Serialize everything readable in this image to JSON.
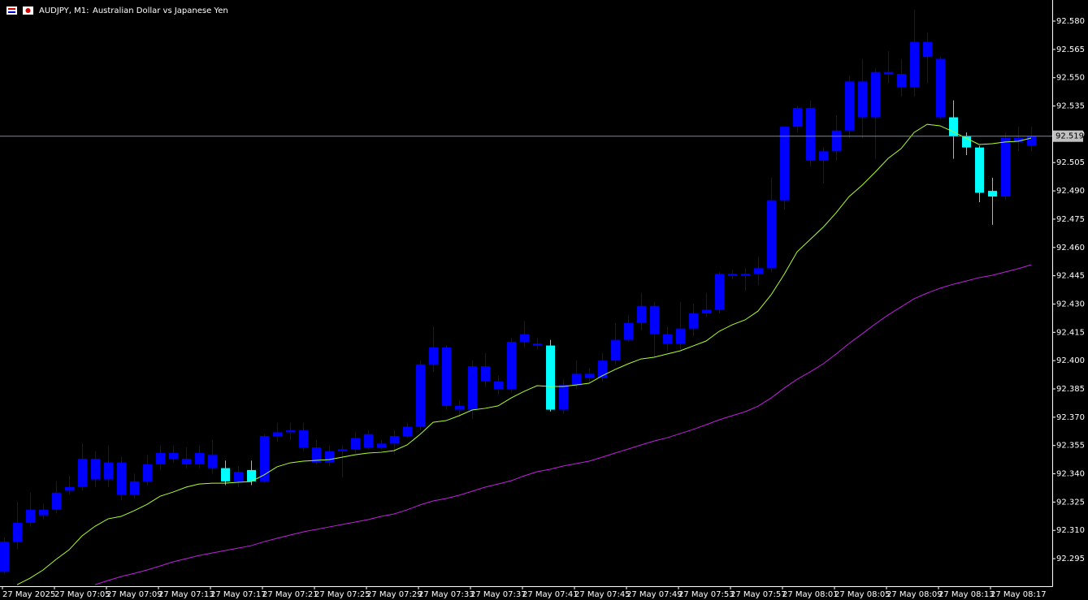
{
  "chart_data": {
    "type": "candlestick",
    "symbol": "AUDJPY, M1:",
    "description": "Australian Dollar vs Japanese Yen",
    "categories": [
      "27 May 2025",
      null,
      null,
      null,
      "27 May 07:05",
      null,
      null,
      null,
      "27 May 07:09",
      null,
      null,
      null,
      "27 May 07:13",
      null,
      null,
      null,
      "27 May 07:17",
      null,
      null,
      null,
      "27 May 07:21",
      null,
      null,
      null,
      "27 May 07:25",
      null,
      null,
      null,
      "27 May 07:29",
      null,
      null,
      null,
      "27 May 07:33",
      null,
      null,
      null,
      "27 May 07:37",
      null,
      null,
      null,
      "27 May 07:41",
      null,
      null,
      null,
      "27 May 07:45",
      null,
      null,
      null,
      "27 May 07:49",
      null,
      null,
      null,
      "27 May 07:53",
      null,
      null,
      null,
      "27 May 07:57",
      null,
      null,
      null,
      "27 May 08:01",
      null,
      null,
      null,
      "27 May 08:05",
      null,
      null,
      null,
      "27 May 08:09",
      null,
      null,
      null,
      "27 May 08:13",
      null,
      null,
      null,
      "27 May 08:17",
      null,
      null,
      null
    ],
    "open": [
      92.288,
      92.304,
      92.314,
      92.318,
      92.321,
      92.331,
      92.333,
      92.348,
      92.337,
      92.346,
      92.329,
      92.336,
      92.345,
      92.351,
      92.348,
      92.345,
      92.35,
      92.343,
      92.336,
      92.342,
      92.336,
      92.36,
      92.362,
      92.363,
      92.354,
      92.346,
      92.352,
      92.353,
      92.354,
      92.354,
      92.356,
      92.36,
      92.365,
      92.398,
      92.407,
      92.376,
      92.374,
      92.397,
      92.389,
      92.385,
      92.41,
      92.409,
      92.408,
      92.374,
      92.387,
      92.393,
      92.391,
      92.4,
      92.411,
      92.42,
      92.429,
      92.414,
      92.409,
      92.417,
      92.425,
      92.427,
      92.446,
      92.445,
      92.446,
      92.449,
      92.485,
      92.524,
      92.534,
      92.506,
      92.511,
      92.522,
      92.548,
      92.529,
      92.553,
      92.552,
      92.545,
      92.569,
      92.56,
      92.529,
      92.519,
      92.513,
      92.49,
      92.487,
      92.516,
      92.514
    ],
    "high": [
      92.306,
      92.325,
      92.33,
      92.324,
      92.336,
      92.339,
      92.356,
      92.352,
      92.355,
      92.349,
      92.34,
      92.35,
      92.355,
      92.355,
      92.354,
      92.355,
      92.358,
      92.347,
      92.344,
      92.347,
      92.361,
      92.367,
      92.367,
      92.367,
      92.358,
      92.355,
      92.355,
      92.362,
      92.363,
      92.358,
      92.363,
      92.367,
      92.4,
      92.418,
      92.408,
      92.379,
      92.4,
      92.404,
      92.392,
      92.412,
      92.421,
      92.412,
      92.411,
      92.39,
      92.4,
      92.396,
      92.404,
      92.42,
      92.424,
      92.436,
      92.431,
      92.418,
      92.431,
      92.43,
      92.436,
      92.447,
      92.448,
      92.449,
      92.455,
      92.497,
      92.524,
      92.535,
      92.538,
      92.513,
      92.53,
      92.551,
      92.56,
      92.555,
      92.564,
      92.56,
      92.586,
      92.574,
      92.561,
      92.538,
      92.521,
      92.514,
      92.497,
      92.521,
      92.524,
      92.524
    ],
    "low": [
      92.287,
      92.3,
      92.312,
      92.316,
      92.319,
      92.329,
      92.331,
      92.333,
      92.333,
      92.326,
      92.327,
      92.334,
      92.342,
      92.346,
      92.343,
      92.343,
      92.34,
      92.334,
      92.333,
      92.334,
      92.335,
      92.357,
      92.358,
      92.352,
      92.345,
      92.344,
      92.338,
      92.351,
      92.353,
      92.353,
      92.35,
      92.359,
      92.363,
      92.394,
      92.374,
      92.37,
      92.369,
      92.386,
      92.382,
      92.383,
      92.407,
      92.406,
      92.373,
      92.372,
      92.385,
      92.388,
      92.389,
      92.398,
      92.41,
      92.416,
      92.402,
      92.405,
      92.406,
      92.413,
      92.423,
      92.425,
      92.443,
      92.437,
      92.44,
      92.447,
      92.48,
      92.521,
      92.503,
      92.494,
      92.506,
      92.518,
      92.518,
      92.507,
      92.547,
      92.54,
      92.54,
      92.547,
      92.528,
      92.507,
      92.509,
      92.484,
      92.472,
      92.485,
      92.511,
      92.511
    ],
    "close": [
      92.304,
      92.314,
      92.321,
      92.321,
      92.33,
      92.333,
      92.348,
      92.337,
      92.346,
      92.329,
      92.336,
      92.345,
      92.351,
      92.348,
      92.345,
      92.351,
      92.343,
      92.336,
      92.341,
      92.336,
      92.36,
      92.362,
      92.363,
      92.354,
      92.346,
      92.352,
      92.353,
      92.359,
      92.361,
      92.356,
      92.36,
      92.365,
      92.398,
      92.407,
      92.376,
      92.374,
      92.397,
      92.389,
      92.385,
      92.41,
      92.414,
      92.408,
      92.374,
      92.387,
      92.393,
      92.391,
      92.4,
      92.411,
      92.42,
      92.429,
      92.414,
      92.409,
      92.417,
      92.425,
      92.427,
      92.446,
      92.445,
      92.446,
      92.449,
      92.485,
      92.524,
      92.534,
      92.506,
      92.511,
      92.522,
      92.548,
      92.529,
      92.553,
      92.552,
      92.545,
      92.569,
      92.561,
      92.529,
      92.519,
      92.513,
      92.489,
      92.487,
      92.518,
      92.518,
      92.519
    ],
    "candle_color": "#0000ff",
    "highlight_color": "#00ffff",
    "highlight_candles": [
      17,
      19,
      42,
      73,
      74,
      75,
      76
    ],
    "series": [
      {
        "color": "#adff2f",
        "values": [
          null,
          92.2812,
          92.2847,
          92.289,
          92.2946,
          92.2997,
          92.3071,
          92.3122,
          92.3161,
          92.3174,
          92.3204,
          92.3238,
          92.3281,
          92.3303,
          92.3329,
          92.3346,
          92.335,
          92.335,
          92.3355,
          92.3359,
          92.3394,
          92.3437,
          92.3458,
          92.3467,
          92.3471,
          92.3475,
          92.3488,
          92.3501,
          92.351,
          92.3514,
          92.3523,
          92.3553,
          92.3609,
          92.3673,
          92.3682,
          92.3708,
          92.3738,
          92.3747,
          92.376,
          92.3802,
          92.3837,
          92.3867,
          92.3863,
          92.3863,
          92.3871,
          92.388,
          92.3919,
          92.3953,
          92.3983,
          92.4009,
          92.4018,
          92.4035,
          92.4052,
          92.4078,
          92.4104,
          92.4155,
          92.419,
          92.4216,
          92.4263,
          92.4349,
          92.4457,
          92.4577,
          92.4642,
          92.4707,
          92.4784,
          92.487,
          92.493,
          92.4999,
          92.5072,
          92.5124,
          92.521,
          92.5253,
          92.5245,
          92.5214,
          92.518,
          92.5146,
          92.515,
          92.5159,
          92.5163,
          92.518
        ]
      },
      {
        "color": "#c020e0",
        "values": [
          null,
          null,
          null,
          null,
          null,
          null,
          null,
          92.2812,
          92.2834,
          92.2855,
          92.2872,
          92.289,
          92.2911,
          92.2933,
          92.295,
          92.2967,
          92.298,
          92.2993,
          92.3006,
          92.3019,
          92.304,
          92.3058,
          92.3075,
          92.3092,
          92.3105,
          92.3118,
          92.3131,
          92.3144,
          92.3157,
          92.3174,
          92.3187,
          92.3209,
          92.3235,
          92.3256,
          92.3269,
          92.3286,
          92.3307,
          92.3329,
          92.3346,
          92.3363,
          92.3389,
          92.3411,
          92.3424,
          92.3441,
          92.3454,
          92.3467,
          92.3488,
          92.351,
          92.3531,
          92.3553,
          92.3574,
          92.3591,
          92.3613,
          92.3635,
          92.366,
          92.3686,
          92.3708,
          92.3729,
          92.3759,
          92.3802,
          92.3854,
          92.3901,
          92.394,
          92.3983,
          92.4035,
          92.4091,
          92.4142,
          92.4194,
          92.4242,
          92.4285,
          92.4328,
          92.4358,
          92.4384,
          92.4405,
          92.4422,
          92.444,
          92.4452,
          92.447,
          92.4487,
          92.4508
        ]
      }
    ],
    "ylim": [
      92.2804,
      92.5912
    ],
    "yticks": [
      {
        "value": 92.58,
        "label": "92.580"
      },
      92.565,
      {
        "value": 92.55,
        "label": "92.550"
      },
      92.535,
      {
        "value": 92.52,
        "label": "92.520"
      },
      92.505,
      {
        "value": 92.49,
        "label": "92.490"
      },
      92.475,
      {
        "value": 92.46,
        "label": "92.460"
      },
      92.445,
      {
        "value": 92.43,
        "label": "92.430"
      },
      92.415,
      {
        "value": 92.4,
        "label": "92.400"
      },
      92.385,
      {
        "value": 92.37,
        "label": "92.370"
      },
      92.355,
      {
        "value": 92.34,
        "label": "92.340"
      },
      92.325,
      {
        "value": 92.31,
        "label": "92.310"
      },
      92.295
    ],
    "price_line": 92.519,
    "price_line_color": "#7788aa"
  }
}
